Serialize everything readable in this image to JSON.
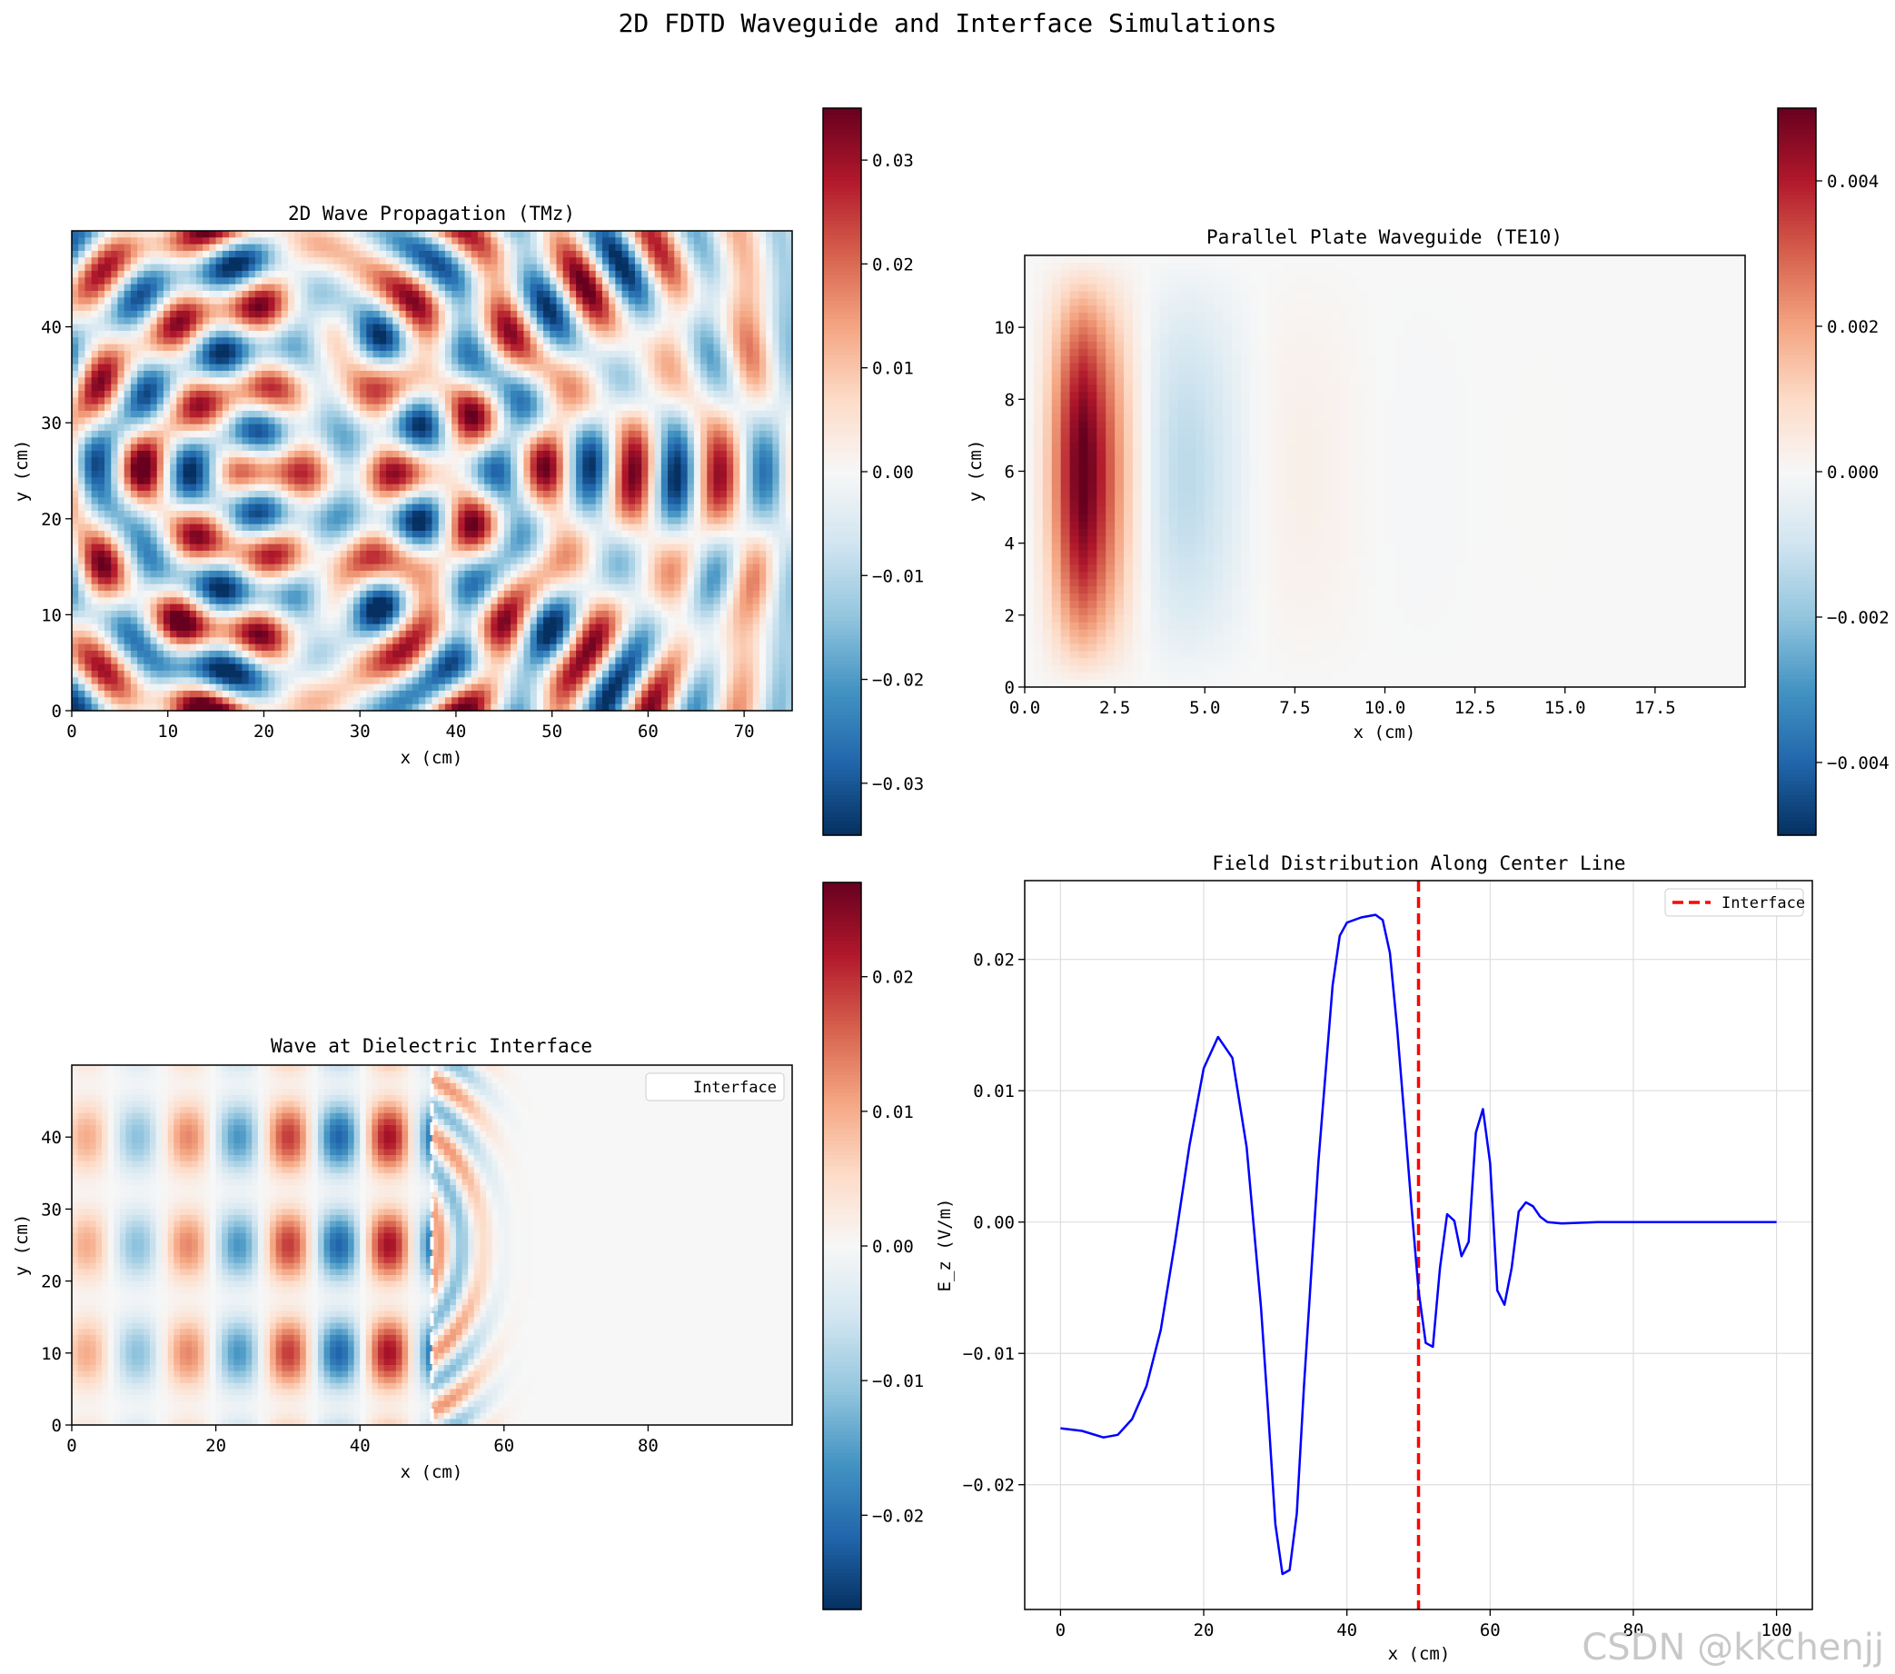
{
  "figure": {
    "title": "2D FDTD Waveguide and Interface Simulations",
    "watermark": "CSDN @kkchenjj",
    "cmap": {
      "name": "RdBu_r",
      "stops": [
        "#053061",
        "#2166ac",
        "#4393c3",
        "#92c5de",
        "#d1e5f0",
        "#f7f7f7",
        "#fddbc7",
        "#f4a582",
        "#d6604d",
        "#b2182b",
        "#67001f"
      ]
    }
  },
  "chart_data": [
    {
      "id": "tmz",
      "type": "heatmap",
      "title": "2D Wave Propagation (TMz)",
      "xlabel": "x (cm)",
      "ylabel": "y (cm)",
      "xlim": [
        0,
        75
      ],
      "ylim": [
        0,
        50
      ],
      "xticks": [
        "0",
        "10",
        "20",
        "30",
        "40",
        "50",
        "60",
        "70"
      ],
      "xtick_values": [
        0,
        10,
        20,
        30,
        40,
        50,
        60,
        70
      ],
      "yticks": [
        "0",
        "10",
        "20",
        "30",
        "40"
      ],
      "ytick_values": [
        0,
        10,
        20,
        30,
        40
      ],
      "clim": [
        -0.035,
        0.035
      ],
      "cbar_ticks": [
        "0.03",
        "0.02",
        "0.01",
        "0.00",
        "−0.01",
        "−0.02",
        "−0.03"
      ],
      "cbar_tick_values": [
        0.03,
        0.02,
        0.01,
        0.0,
        -0.01,
        -0.02,
        -0.03
      ],
      "field": "tmz"
    },
    {
      "id": "te10",
      "type": "heatmap",
      "title": "Parallel Plate Waveguide (TE10)",
      "xlabel": "x (cm)",
      "ylabel": "y (cm)",
      "xlim": [
        0,
        20
      ],
      "ylim": [
        0,
        12
      ],
      "xticks": [
        "0.0",
        "2.5",
        "5.0",
        "7.5",
        "10.0",
        "12.5",
        "15.0",
        "17.5"
      ],
      "xtick_values": [
        0,
        2.5,
        5,
        7.5,
        10,
        12.5,
        15,
        17.5
      ],
      "yticks": [
        "0",
        "2",
        "4",
        "6",
        "8",
        "10"
      ],
      "ytick_values": [
        0,
        2,
        4,
        6,
        8,
        10
      ],
      "clim": [
        -0.005,
        0.005
      ],
      "cbar_ticks": [
        "0.004",
        "0.002",
        "0.000",
        "−0.002",
        "−0.004"
      ],
      "cbar_tick_values": [
        0.004,
        0.002,
        0.0,
        -0.002,
        -0.004
      ],
      "field": "te10"
    },
    {
      "id": "interface",
      "type": "heatmap",
      "title": "Wave at Dielectric Interface",
      "xlabel": "x (cm)",
      "ylabel": "y (cm)",
      "xlim": [
        0,
        100
      ],
      "ylim": [
        0,
        50
      ],
      "xticks": [
        "0",
        "20",
        "40",
        "60",
        "80"
      ],
      "xtick_values": [
        0,
        20,
        40,
        60,
        80
      ],
      "yticks": [
        "0",
        "10",
        "20",
        "30",
        "40"
      ],
      "ytick_values": [
        0,
        10,
        20,
        30,
        40
      ],
      "clim": [
        -0.027,
        0.027
      ],
      "cbar_ticks": [
        "0.02",
        "0.01",
        "0.00",
        "−0.01",
        "−0.02"
      ],
      "cbar_tick_values": [
        0.02,
        0.01,
        0.0,
        -0.01,
        -0.02
      ],
      "interface_x": 50,
      "legend": {
        "label": "Interface",
        "location": "upper right"
      },
      "field": "interface"
    },
    {
      "id": "centerline",
      "type": "line",
      "title": "Field Distribution Along Center Line",
      "xlabel": "x (cm)",
      "ylabel": "E_z (V/m)",
      "xlim": [
        -5,
        105
      ],
      "ylim": [
        -0.0295,
        0.026
      ],
      "xticks": [
        "0",
        "20",
        "40",
        "60",
        "80",
        "100"
      ],
      "xtick_values": [
        0,
        20,
        40,
        60,
        80,
        100
      ],
      "yticks": [
        "0.02",
        "0.01",
        "0.00",
        "−0.01",
        "−0.02"
      ],
      "ytick_values": [
        0.02,
        0.01,
        0.0,
        -0.01,
        -0.02
      ],
      "grid": true,
      "interface_x": 50,
      "legend": {
        "label": "Interface",
        "location": "upper right"
      },
      "series": [
        {
          "name": "E_z",
          "color": "#0000ff",
          "points": [
            [
              0,
              -0.0157
            ],
            [
              3,
              -0.0159
            ],
            [
              6,
              -0.0164
            ],
            [
              8,
              -0.0162
            ],
            [
              10,
              -0.015
            ],
            [
              12,
              -0.0125
            ],
            [
              14,
              -0.0082
            ],
            [
              16,
              -0.0015
            ],
            [
              18,
              0.0058
            ],
            [
              20,
              0.0117
            ],
            [
              22,
              0.0141
            ],
            [
              24,
              0.0125
            ],
            [
              26,
              0.0057
            ],
            [
              28,
              -0.0065
            ],
            [
              29,
              -0.0145
            ],
            [
              30,
              -0.023
            ],
            [
              31,
              -0.0268
            ],
            [
              32,
              -0.0265
            ],
            [
              33,
              -0.0222
            ],
            [
              34,
              -0.0125
            ],
            [
              36,
              0.0045
            ],
            [
              38,
              0.018
            ],
            [
              39,
              0.0218
            ],
            [
              40,
              0.0228
            ],
            [
              42,
              0.0232
            ],
            [
              44,
              0.0234
            ],
            [
              45,
              0.023
            ],
            [
              46,
              0.0205
            ],
            [
              47,
              0.0148
            ],
            [
              48,
              0.0082
            ],
            [
              49,
              0.0013
            ],
            [
              50,
              -0.0052
            ],
            [
              51,
              -0.0092
            ],
            [
              52,
              -0.0095
            ],
            [
              53,
              -0.0035
            ],
            [
              54,
              0.0006
            ],
            [
              55,
              0.0001
            ],
            [
              56,
              -0.0026
            ],
            [
              57,
              -0.0015
            ],
            [
              58,
              0.0068
            ],
            [
              59,
              0.0086
            ],
            [
              60,
              0.0045
            ],
            [
              61,
              -0.0052
            ],
            [
              62,
              -0.0063
            ],
            [
              63,
              -0.0035
            ],
            [
              64,
              0.0008
            ],
            [
              65,
              0.0015
            ],
            [
              66,
              0.0012
            ],
            [
              67,
              0.0004
            ],
            [
              68,
              0.0
            ],
            [
              70,
              -0.0001
            ],
            [
              75,
              0.0
            ],
            [
              80,
              0.0
            ],
            [
              90,
              0.0
            ],
            [
              100,
              0.0
            ]
          ]
        }
      ]
    }
  ]
}
